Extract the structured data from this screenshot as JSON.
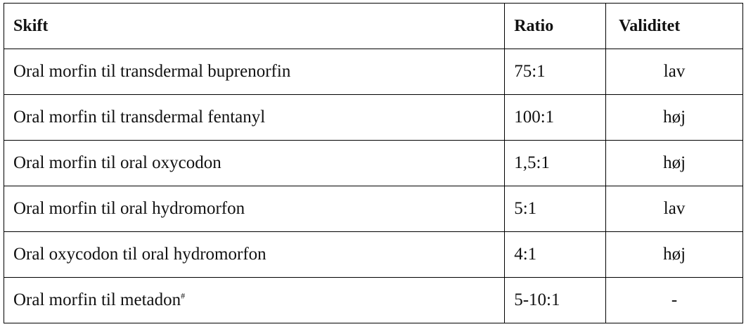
{
  "table": {
    "header": [
      "Skift",
      "Ratio",
      "Validitet"
    ],
    "rows": [
      [
        "Oral morfin til transdermal buprenorfin",
        "75:1",
        "lav"
      ],
      [
        "Oral morfin til transdermal fentanyl",
        "100:1",
        "høj"
      ],
      [
        "Oral morfin til oral oxycodon",
        "1,5:1",
        "høj"
      ],
      [
        "Oral morfin til oral hydromorfon",
        "5:1",
        "lav"
      ],
      [
        "Oral oxycodon til oral hydromorfon",
        "4:1",
        "høj"
      ],
      [
        "Oral morfin til metadon",
        "5-10:1",
        "-"
      ]
    ],
    "footnote_marks": [
      {
        "row": 5,
        "mark": "#"
      }
    ]
  }
}
